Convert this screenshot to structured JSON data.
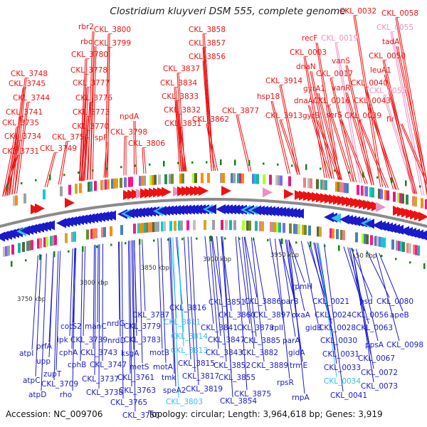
{
  "title": "Clostridium kluyveri DSM 555, complete genome",
  "footer": {
    "accession": "Accession: NC_009706",
    "summary": "Topology: circular; Length: 3,964,618 bp; Genes: 3,919"
  },
  "colors": {
    "forward_strand": "#ee1111",
    "reverse_strand": "#1a1acc",
    "pseudo_forward": "#f090c0",
    "pseudo_reverse": "#33c0ee",
    "backbone": "#888888",
    "marker": "#118811"
  },
  "kbp_ticks": [
    "3750 kbp",
    "3800 kbp",
    "3850 kbp",
    "3900 kbp",
    "3950 kbp",
    "50 kbp"
  ],
  "top_labels": [
    {
      "text": "CKL_3748",
      "type": "top"
    },
    {
      "text": "CKL_3745",
      "type": "top"
    },
    {
      "text": "CKL_3744",
      "type": "top"
    },
    {
      "text": "CKL_3741",
      "type": "top"
    },
    {
      "text": "CKL_3735",
      "type": "top"
    },
    {
      "text": "CKL_3734",
      "type": "top"
    },
    {
      "text": "CKL_3731",
      "type": "top"
    },
    {
      "text": "CKL_3749",
      "type": "top"
    },
    {
      "text": "CKL_3754",
      "type": "top"
    },
    {
      "text": "rbr2",
      "type": "top"
    },
    {
      "text": "rbo",
      "type": "top"
    },
    {
      "text": "CKL_3780",
      "type": "top"
    },
    {
      "text": "CKL_3778",
      "type": "top"
    },
    {
      "text": "CKL_3777",
      "type": "top"
    },
    {
      "text": "CKL_3776",
      "type": "top"
    },
    {
      "text": "CKL_3773",
      "type": "top"
    },
    {
      "text": "CKL_3770",
      "type": "top"
    },
    {
      "text": "ispF",
      "type": "top"
    },
    {
      "text": "CKL_3800",
      "type": "top"
    },
    {
      "text": "CKL_3799",
      "type": "top"
    },
    {
      "text": "npdA",
      "type": "top"
    },
    {
      "text": "CKL_3798",
      "type": "top"
    },
    {
      "text": "CKL_3806",
      "type": "top"
    },
    {
      "text": "CKL_3858",
      "type": "top"
    },
    {
      "text": "CKL_3857",
      "type": "top"
    },
    {
      "text": "CKL_3856",
      "type": "top"
    },
    {
      "text": "CKL_3837",
      "type": "top"
    },
    {
      "text": "CKL_3834",
      "type": "top"
    },
    {
      "text": "CKL_3833",
      "type": "top"
    },
    {
      "text": "CKL_3832",
      "type": "top"
    },
    {
      "text": "CKL_3831",
      "type": "top"
    },
    {
      "text": "CKL_3862",
      "type": "top"
    },
    {
      "text": "CKL_3877",
      "type": "top"
    },
    {
      "text": "CKL_3914",
      "type": "top"
    },
    {
      "text": "hsp18",
      "type": "top"
    },
    {
      "text": "CKL_3913",
      "type": "top"
    },
    {
      "text": "recF",
      "type": "top"
    },
    {
      "text": "CKL_0003",
      "type": "top"
    },
    {
      "text": "dnaN",
      "type": "top"
    },
    {
      "text": "gyrA1",
      "type": "top"
    },
    {
      "text": "dnaA",
      "type": "top"
    },
    {
      "text": "gyrB",
      "type": "top"
    },
    {
      "text": "CKL_0019",
      "type": "pink"
    },
    {
      "text": "vanS",
      "type": "top"
    },
    {
      "text": "CKL_0017",
      "type": "top"
    },
    {
      "text": "vanR",
      "type": "top"
    },
    {
      "text": "CKL_0016",
      "type": "top"
    },
    {
      "text": "serS",
      "type": "top"
    },
    {
      "text": "CKL_0032",
      "type": "top"
    },
    {
      "text": "CKL_0040",
      "type": "top"
    },
    {
      "text": "CKL_0043",
      "type": "top"
    },
    {
      "text": "CKL_0039",
      "type": "top"
    },
    {
      "text": "CKL_0058",
      "type": "top"
    },
    {
      "text": "CKL_0055",
      "type": "pink"
    },
    {
      "text": "tadA",
      "type": "top"
    },
    {
      "text": "CKL_0050",
      "type": "top"
    },
    {
      "text": "leuA1",
      "type": "top"
    },
    {
      "text": "CKL_0053",
      "type": "pink"
    },
    {
      "text": "flr",
      "type": "top"
    }
  ],
  "bottom_labels": [
    {
      "text": "cotS2",
      "type": "bot"
    },
    {
      "text": "ipk",
      "type": "bot"
    },
    {
      "text": "cphA",
      "type": "bot"
    },
    {
      "text": "cphB",
      "type": "bot"
    },
    {
      "text": "atpI",
      "type": "bot"
    },
    {
      "text": "prfA",
      "type": "bot"
    },
    {
      "text": "upp",
      "type": "bot"
    },
    {
      "text": "zupT",
      "type": "bot"
    },
    {
      "text": "atpC",
      "type": "bot"
    },
    {
      "text": "CKL_3709",
      "type": "bot"
    },
    {
      "text": "atpD",
      "type": "bot"
    },
    {
      "text": "rho",
      "type": "bot"
    },
    {
      "text": "manC",
      "type": "bot"
    },
    {
      "text": "CKL_3739",
      "type": "bot"
    },
    {
      "text": "CKL_3743",
      "type": "bot"
    },
    {
      "text": "CKL_3747",
      "type": "bot"
    },
    {
      "text": "CKL_3737",
      "type": "bot"
    },
    {
      "text": "CKL_3738",
      "type": "bot"
    },
    {
      "text": "CKL_3750",
      "type": "bot"
    },
    {
      "text": "nrdG",
      "type": "bot"
    },
    {
      "text": "nrdD",
      "type": "bot"
    },
    {
      "text": "ksgA",
      "type": "bot"
    },
    {
      "text": "metS",
      "type": "bot"
    },
    {
      "text": "CKL_3761",
      "type": "bot"
    },
    {
      "text": "CKL_3763",
      "type": "bot"
    },
    {
      "text": "CKL_3765",
      "type": "bot"
    },
    {
      "text": "CKL_3787",
      "type": "bot"
    },
    {
      "text": "CKL_3779",
      "type": "bot"
    },
    {
      "text": "CKL_3783",
      "type": "bot"
    },
    {
      "text": "motB",
      "type": "bot"
    },
    {
      "text": "motA",
      "type": "bot"
    },
    {
      "text": "tmk",
      "type": "bot"
    },
    {
      "text": "speA2",
      "type": "bot"
    },
    {
      "text": "CKL_3803",
      "type": "cyan"
    },
    {
      "text": "CKL_3816",
      "type": "bot"
    },
    {
      "text": "CKL_3811",
      "type": "cyan"
    },
    {
      "text": "CKL_3814",
      "type": "cyan"
    },
    {
      "text": "CKL_3813",
      "type": "cyan"
    },
    {
      "text": "CKL_3815",
      "type": "bot"
    },
    {
      "text": "CKL_3817",
      "type": "bot"
    },
    {
      "text": "CKL_3819",
      "type": "bot"
    },
    {
      "text": "CKL_3851",
      "type": "bot"
    },
    {
      "text": "CKL_3860",
      "type": "bot"
    },
    {
      "text": "CKL_3841",
      "type": "bot"
    },
    {
      "text": "CKL_3847",
      "type": "bot"
    },
    {
      "text": "CKL_3843",
      "type": "bot"
    },
    {
      "text": "CKL_3852",
      "type": "bot"
    },
    {
      "text": "CKL_3855",
      "type": "bot"
    },
    {
      "text": "CKL_3854",
      "type": "bot"
    },
    {
      "text": "CKL_3886",
      "type": "bot"
    },
    {
      "text": "CKL_3897",
      "type": "bot"
    },
    {
      "text": "CKL_3878",
      "type": "bot"
    },
    {
      "text": "rplI",
      "type": "bot"
    },
    {
      "text": "CKL_3885",
      "type": "bot"
    },
    {
      "text": "CKL_3882",
      "type": "bot"
    },
    {
      "text": "CKL_3889",
      "type": "bot"
    },
    {
      "text": "CKL_3875",
      "type": "bot"
    },
    {
      "text": "rpmH",
      "type": "bot"
    },
    {
      "text": "parB",
      "type": "bot"
    },
    {
      "text": "oxaA",
      "type": "bot"
    },
    {
      "text": "gidB",
      "type": "bot"
    },
    {
      "text": "parA",
      "type": "bot"
    },
    {
      "text": "gidA",
      "type": "bot"
    },
    {
      "text": "trmE",
      "type": "bot"
    },
    {
      "text": "rpsR",
      "type": "bot"
    },
    {
      "text": "rnpA",
      "type": "bot"
    },
    {
      "text": "CKL_0021",
      "type": "bot"
    },
    {
      "text": "CKL_0024",
      "type": "bot"
    },
    {
      "text": "CKL_0028",
      "type": "bot"
    },
    {
      "text": "CKL_0030",
      "type": "bot"
    },
    {
      "text": "CKL_0031",
      "type": "bot"
    },
    {
      "text": "CKL_0033",
      "type": "bot"
    },
    {
      "text": "CKL_0034",
      "type": "cyan"
    },
    {
      "text": "CKL_0041",
      "type": "bot"
    },
    {
      "text": "psd",
      "type": "bot"
    },
    {
      "text": "CKL_0080",
      "type": "bot"
    },
    {
      "text": "CKL_0056",
      "type": "bot"
    },
    {
      "text": "apeB",
      "type": "bot"
    },
    {
      "text": "CKL_0063",
      "type": "bot"
    },
    {
      "text": "CKL_0098",
      "type": "bot"
    },
    {
      "text": "ppsA",
      "type": "bot"
    },
    {
      "text": "CKL_0067",
      "type": "bot"
    },
    {
      "text": "CKL_0072",
      "type": "bot"
    },
    {
      "text": "CKL_0073",
      "type": "bot"
    }
  ]
}
